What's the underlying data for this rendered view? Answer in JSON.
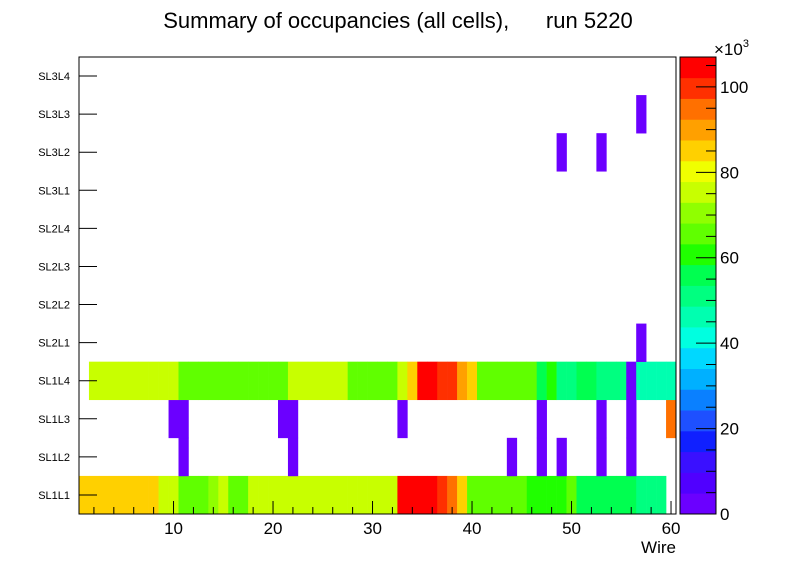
{
  "chart_data": {
    "type": "heatmap",
    "title": "Summary of occupancies (all cells),      run 5220",
    "xlabel": "Wire",
    "ylabel": "",
    "xlim": [
      0.5,
      60.5
    ],
    "x_ticks": [
      10,
      20,
      30,
      40,
      50,
      60
    ],
    "y_categories": [
      "SL1L1",
      "SL1L2",
      "SL1L3",
      "SL1L4",
      "SL2L1",
      "SL2L2",
      "SL2L3",
      "SL2L4",
      "SL3L1",
      "SL3L2",
      "SL3L3",
      "SL3L4"
    ],
    "color_scale": {
      "min": 0,
      "max": 107000,
      "exponent_label": "×10",
      "exponent_power": "3",
      "ticks": [
        0,
        20,
        40,
        60,
        80,
        100
      ],
      "palette": [
        "#6b00ff",
        "#5000ff",
        "#3a10ff",
        "#1020ff",
        "#1e50ff",
        "#0a80ff",
        "#00b0ff",
        "#00d8ff",
        "#00ffe0",
        "#00ffb0",
        "#00ff80",
        "#00ff50",
        "#20ff00",
        "#60ff00",
        "#90ff00",
        "#c8ff00",
        "#f0ff00",
        "#ffd000",
        "#ffa000",
        "#ff7000",
        "#ff3000",
        "#ff0000"
      ]
    },
    "rows": [
      {
        "layer": "SL1L1",
        "cells": [
          [
            1,
            85000
          ],
          [
            2,
            85000
          ],
          [
            3,
            85000
          ],
          [
            4,
            85000
          ],
          [
            5,
            85000
          ],
          [
            6,
            85000
          ],
          [
            7,
            85000
          ],
          [
            8,
            85000
          ],
          [
            9,
            77000
          ],
          [
            10,
            73000
          ],
          [
            11,
            65000
          ],
          [
            12,
            65000
          ],
          [
            13,
            65000
          ],
          [
            14,
            70000
          ],
          [
            15,
            73000
          ],
          [
            16,
            65000
          ],
          [
            17,
            65000
          ],
          [
            18,
            73000
          ],
          [
            19,
            73000
          ],
          [
            20,
            73000
          ],
          [
            21,
            77000
          ],
          [
            22,
            77000
          ],
          [
            23,
            77000
          ],
          [
            24,
            77000
          ],
          [
            25,
            77000
          ],
          [
            26,
            73000
          ],
          [
            27,
            73000
          ],
          [
            28,
            73000
          ],
          [
            29,
            77000
          ],
          [
            30,
            73000
          ],
          [
            31,
            73000
          ],
          [
            32,
            77000
          ],
          [
            33,
            103000
          ],
          [
            34,
            103000
          ],
          [
            35,
            103000
          ],
          [
            36,
            103000
          ],
          [
            37,
            98000
          ],
          [
            38,
            93000
          ],
          [
            39,
            85000
          ],
          [
            40,
            65000
          ],
          [
            41,
            65000
          ],
          [
            42,
            65000
          ],
          [
            43,
            65000
          ],
          [
            44,
            68000
          ],
          [
            45,
            68000
          ],
          [
            46,
            62000
          ],
          [
            47,
            62000
          ],
          [
            48,
            62000
          ],
          [
            49,
            62000
          ],
          [
            50,
            68000
          ],
          [
            51,
            58000
          ],
          [
            52,
            58000
          ],
          [
            53,
            58000
          ],
          [
            54,
            58000
          ],
          [
            55,
            58000
          ],
          [
            56,
            58000
          ],
          [
            57,
            52000
          ],
          [
            58,
            52000
          ],
          [
            59,
            52000
          ]
        ]
      },
      {
        "layer": "SL1L2",
        "cells": [
          [
            11,
            4000
          ],
          [
            22,
            4000
          ],
          [
            44,
            4000
          ],
          [
            47,
            4000
          ],
          [
            49,
            4000
          ],
          [
            53,
            4000
          ],
          [
            56,
            4000
          ]
        ]
      },
      {
        "layer": "SL1L3",
        "cells": [
          [
            10,
            4000
          ],
          [
            11,
            4000
          ],
          [
            21,
            4000
          ],
          [
            22,
            4000
          ],
          [
            33,
            4000
          ],
          [
            47,
            4000
          ],
          [
            53,
            4000
          ],
          [
            56,
            4000
          ],
          [
            60,
            95000
          ]
        ]
      },
      {
        "layer": "SL1L4",
        "cells": [
          [
            2,
            73000
          ],
          [
            3,
            77000
          ],
          [
            4,
            77000
          ],
          [
            5,
            73000
          ],
          [
            6,
            77000
          ],
          [
            7,
            77000
          ],
          [
            8,
            77000
          ],
          [
            9,
            73000
          ],
          [
            10,
            73000
          ],
          [
            11,
            68000
          ],
          [
            12,
            65000
          ],
          [
            13,
            68000
          ],
          [
            14,
            68000
          ],
          [
            15,
            68000
          ],
          [
            16,
            68000
          ],
          [
            17,
            65000
          ],
          [
            18,
            65000
          ],
          [
            19,
            65000
          ],
          [
            20,
            68000
          ],
          [
            21,
            68000
          ],
          [
            22,
            73000
          ],
          [
            23,
            73000
          ],
          [
            24,
            73000
          ],
          [
            25,
            73000
          ],
          [
            26,
            73000
          ],
          [
            27,
            73000
          ],
          [
            28,
            68000
          ],
          [
            29,
            68000
          ],
          [
            30,
            68000
          ],
          [
            31,
            68000
          ],
          [
            32,
            68000
          ],
          [
            33,
            77000
          ],
          [
            34,
            85000
          ],
          [
            35,
            103000
          ],
          [
            36,
            103000
          ],
          [
            37,
            98000
          ],
          [
            38,
            98000
          ],
          [
            39,
            91000
          ],
          [
            40,
            85000
          ],
          [
            41,
            68000
          ],
          [
            42,
            65000
          ],
          [
            43,
            65000
          ],
          [
            44,
            65000
          ],
          [
            45,
            65000
          ],
          [
            46,
            68000
          ],
          [
            47,
            58000
          ],
          [
            48,
            62000
          ],
          [
            49,
            52000
          ],
          [
            50,
            52000
          ],
          [
            51,
            55000
          ],
          [
            52,
            55000
          ],
          [
            53,
            52000
          ],
          [
            54,
            52000
          ],
          [
            55,
            52000
          ],
          [
            56,
            4000
          ],
          [
            57,
            47000
          ],
          [
            58,
            47000
          ],
          [
            59,
            47000
          ],
          [
            60,
            45000
          ]
        ]
      },
      {
        "layer": "SL2L1",
        "cells": [
          [
            57,
            4000
          ]
        ]
      },
      {
        "layer": "SL2L2",
        "cells": []
      },
      {
        "layer": "SL2L3",
        "cells": []
      },
      {
        "layer": "SL2L4",
        "cells": []
      },
      {
        "layer": "SL3L1",
        "cells": []
      },
      {
        "layer": "SL3L2",
        "cells": [
          [
            49,
            4000
          ],
          [
            53,
            4000
          ]
        ]
      },
      {
        "layer": "SL3L3",
        "cells": [
          [
            57,
            4000
          ]
        ]
      },
      {
        "layer": "SL3L4",
        "cells": []
      }
    ]
  }
}
